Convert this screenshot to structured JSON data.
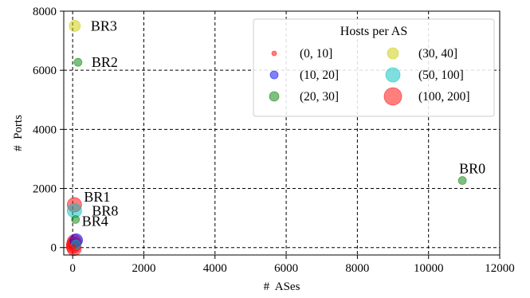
{
  "chart_data": {
    "type": "scatter",
    "xlabel": "#  ASes",
    "ylabel": "#  Ports",
    "xlim": [
      -250,
      12000
    ],
    "ylim": [
      -250,
      8000
    ],
    "xticks": [
      0,
      2000,
      4000,
      6000,
      8000,
      10000,
      12000
    ],
    "yticks": [
      0,
      2000,
      4000,
      6000,
      8000
    ],
    "xtick_labels": [
      "0",
      "2000",
      "4000",
      "6000",
      "8000",
      "10000",
      "12000"
    ],
    "ytick_labels": [
      "0",
      "2000",
      "4000",
      "6000",
      "8000"
    ],
    "grid": true,
    "grid_style": "dashed",
    "legend": {
      "title": "Hosts per AS",
      "placement": "top-right",
      "entries": [
        {
          "label": "(0, 10]",
          "color": "#ff0000",
          "size": 3
        },
        {
          "label": "(10, 20]",
          "color": "#0000ff",
          "size": 5
        },
        {
          "label": "(20, 30]",
          "color": "#008000",
          "size": 6
        },
        {
          "label": "(30, 40]",
          "color": "#cccc00",
          "size": 7
        },
        {
          "label": "(50, 100]",
          "color": "#00c0c0",
          "size": 9
        },
        {
          "label": "(100, 200]",
          "color": "#ff0000",
          "size": 11
        }
      ]
    },
    "points": [
      {
        "x": 60,
        "y": 7500,
        "label": "BR3",
        "color": "#cccc00",
        "size": 7
      },
      {
        "x": 150,
        "y": 6270,
        "label": "BR2",
        "color": "#008000",
        "size": 5
      },
      {
        "x": 10950,
        "y": 2270,
        "label": "BR0",
        "color": "#008000",
        "size": 5
      },
      {
        "x": 50,
        "y": 1450,
        "label": "BR1",
        "color": "#ff0000",
        "size": 9
      },
      {
        "x": 50,
        "y": 1250,
        "label": "BR8",
        "color": "#00c0c0",
        "size": 9
      },
      {
        "x": 80,
        "y": 950,
        "label": "BR4",
        "color": "#008000",
        "size": 5
      },
      {
        "x": 100,
        "y": 250,
        "label": "",
        "color": "#0000ff",
        "size": 8
      },
      {
        "x": 50,
        "y": 200,
        "label": "",
        "color": "#ff0000",
        "size": 9
      },
      {
        "x": 30,
        "y": 120,
        "label": "",
        "color": "#ff0000",
        "size": 9
      },
      {
        "x": 20,
        "y": 50,
        "label": "",
        "color": "#ff0000",
        "size": 9
      },
      {
        "x": 40,
        "y": -30,
        "label": "",
        "color": "#ff0000",
        "size": 9
      },
      {
        "x": 90,
        "y": 100,
        "label": "",
        "color": "#00c0c0",
        "size": 6
      },
      {
        "x": 20,
        "y": 20,
        "label": "",
        "color": "#ff0000",
        "size": 3
      }
    ]
  }
}
